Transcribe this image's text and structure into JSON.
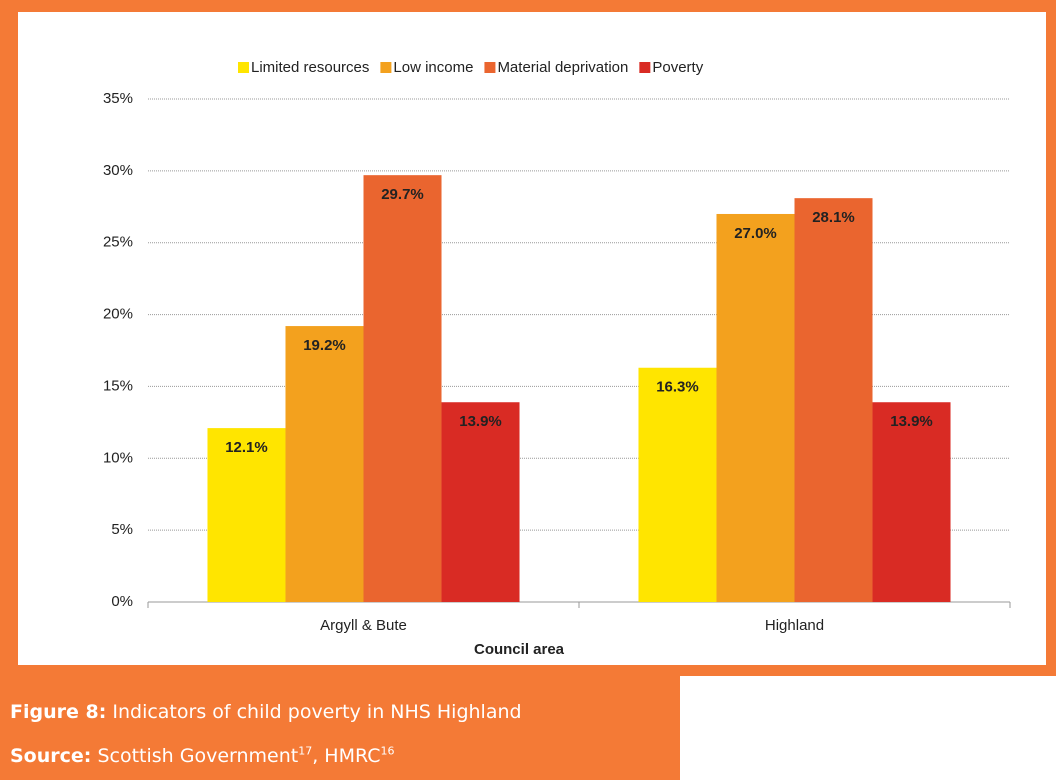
{
  "chart_data": {
    "type": "bar",
    "categories": [
      "Argyll & Bute",
      "Highland"
    ],
    "x_label": "Council area",
    "series": [
      {
        "name": "Limited resources",
        "color": "#FFE500",
        "values": [
          12.1,
          16.3
        ],
        "value_labels": [
          "12.1%",
          "16.3%"
        ]
      },
      {
        "name": "Low income",
        "color": "#F3A11E",
        "values": [
          19.2,
          27.0
        ],
        "value_labels": [
          "19.2%",
          "27.0%"
        ]
      },
      {
        "name": "Material deprivation",
        "color": "#EA652F",
        "values": [
          29.7,
          28.1
        ],
        "value_labels": [
          "29.7%",
          "28.1%"
        ]
      },
      {
        "name": "Poverty",
        "color": "#D92B24",
        "values": [
          13.9,
          13.9
        ],
        "value_labels": [
          "13.9%",
          "13.9%"
        ]
      }
    ],
    "ylim": [
      0,
      35
    ],
    "yticks": [
      {
        "value": 0,
        "label": "0%"
      },
      {
        "value": 5,
        "label": "5%"
      },
      {
        "value": 10,
        "label": "10%"
      },
      {
        "value": 15,
        "label": "15%"
      },
      {
        "value": 20,
        "label": "20%"
      },
      {
        "value": 25,
        "label": "25%"
      },
      {
        "value": 30,
        "label": "30%"
      },
      {
        "value": 35,
        "label": "35%"
      }
    ],
    "grid": true,
    "legend": "top"
  },
  "caption": {
    "figure_label": "Figure 8:",
    "figure_text": "Indicators of child poverty in NHS Highland",
    "source_label": "Source:",
    "source_1": "Scottish Government",
    "source_1_ref": "17",
    "source_2": ", HMRC",
    "source_2_ref": "16"
  }
}
